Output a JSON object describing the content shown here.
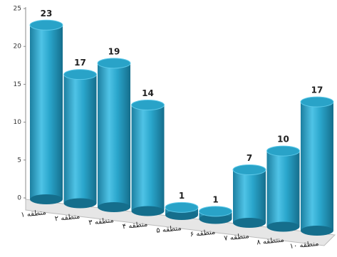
{
  "chart_data": {
    "type": "bar",
    "categories": [
      "منطقه ۱",
      "منطقه ۲",
      "منطقه ۳",
      "منطقه ۴",
      "منطقه ۵",
      "منطقه ۶",
      "منطقه ۷",
      "منتطقه ۸",
      "منطقه ۱۰"
    ],
    "values": [
      23,
      17,
      19,
      14,
      1,
      1,
      7,
      10,
      17
    ],
    "color": "#29a3c8",
    "ylim": [
      0,
      25
    ],
    "yticks": [
      0,
      5,
      10,
      15,
      20,
      25
    ],
    "grid": false
  }
}
